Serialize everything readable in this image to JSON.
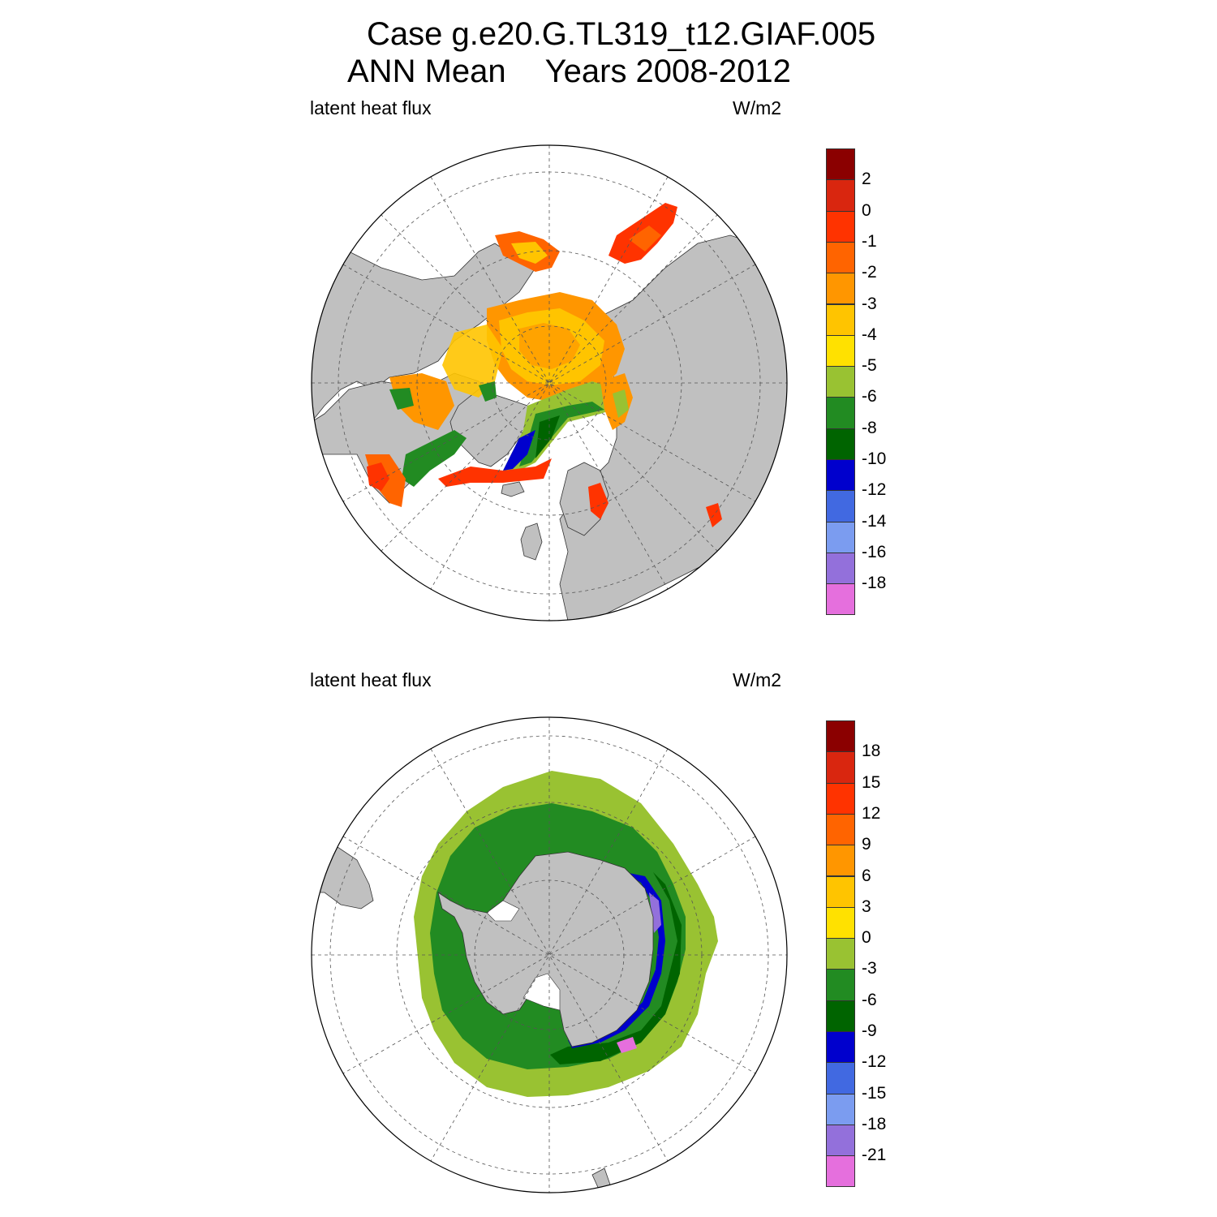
{
  "title": {
    "line1": "Case g.e20.G.TL319_t12.GIAF.005",
    "line2_left": "ANN Mean",
    "line2_right": "Years 2008-2012"
  },
  "panels": [
    {
      "id": "north",
      "variable_label": "latent heat flux",
      "units_label": "W/m2",
      "colorbar": {
        "colors": [
          "#8b0000",
          "#d9260f",
          "#ff3300",
          "#ff6400",
          "#ff9600",
          "#ffc400",
          "#ffe100",
          "#99c232",
          "#228b22",
          "#006400",
          "#0000cd",
          "#4169e1",
          "#7b9cf0",
          "#9370db",
          "#e56fdd"
        ],
        "labels": [
          "2",
          "0",
          "-1",
          "-2",
          "-3",
          "-4",
          "-5",
          "-6",
          "-8",
          "-10",
          "-12",
          "-14",
          "-16",
          "-18"
        ]
      }
    },
    {
      "id": "south",
      "variable_label": "latent heat flux",
      "units_label": "W/m2",
      "colorbar": {
        "colors": [
          "#8b0000",
          "#d9260f",
          "#ff3300",
          "#ff6400",
          "#ff9600",
          "#ffc400",
          "#ffe100",
          "#99c232",
          "#228b22",
          "#006400",
          "#0000cd",
          "#4169e1",
          "#7b9cf0",
          "#9370db",
          "#e56fdd"
        ],
        "labels": [
          "18",
          "15",
          "12",
          "9",
          "6",
          "3",
          "0",
          "-3",
          "-6",
          "-9",
          "-12",
          "-15",
          "-18",
          "-21"
        ]
      }
    }
  ],
  "colors": {
    "land": "#c0c0c0",
    "ocean_background": "#ffffff",
    "grid": "#555555"
  }
}
